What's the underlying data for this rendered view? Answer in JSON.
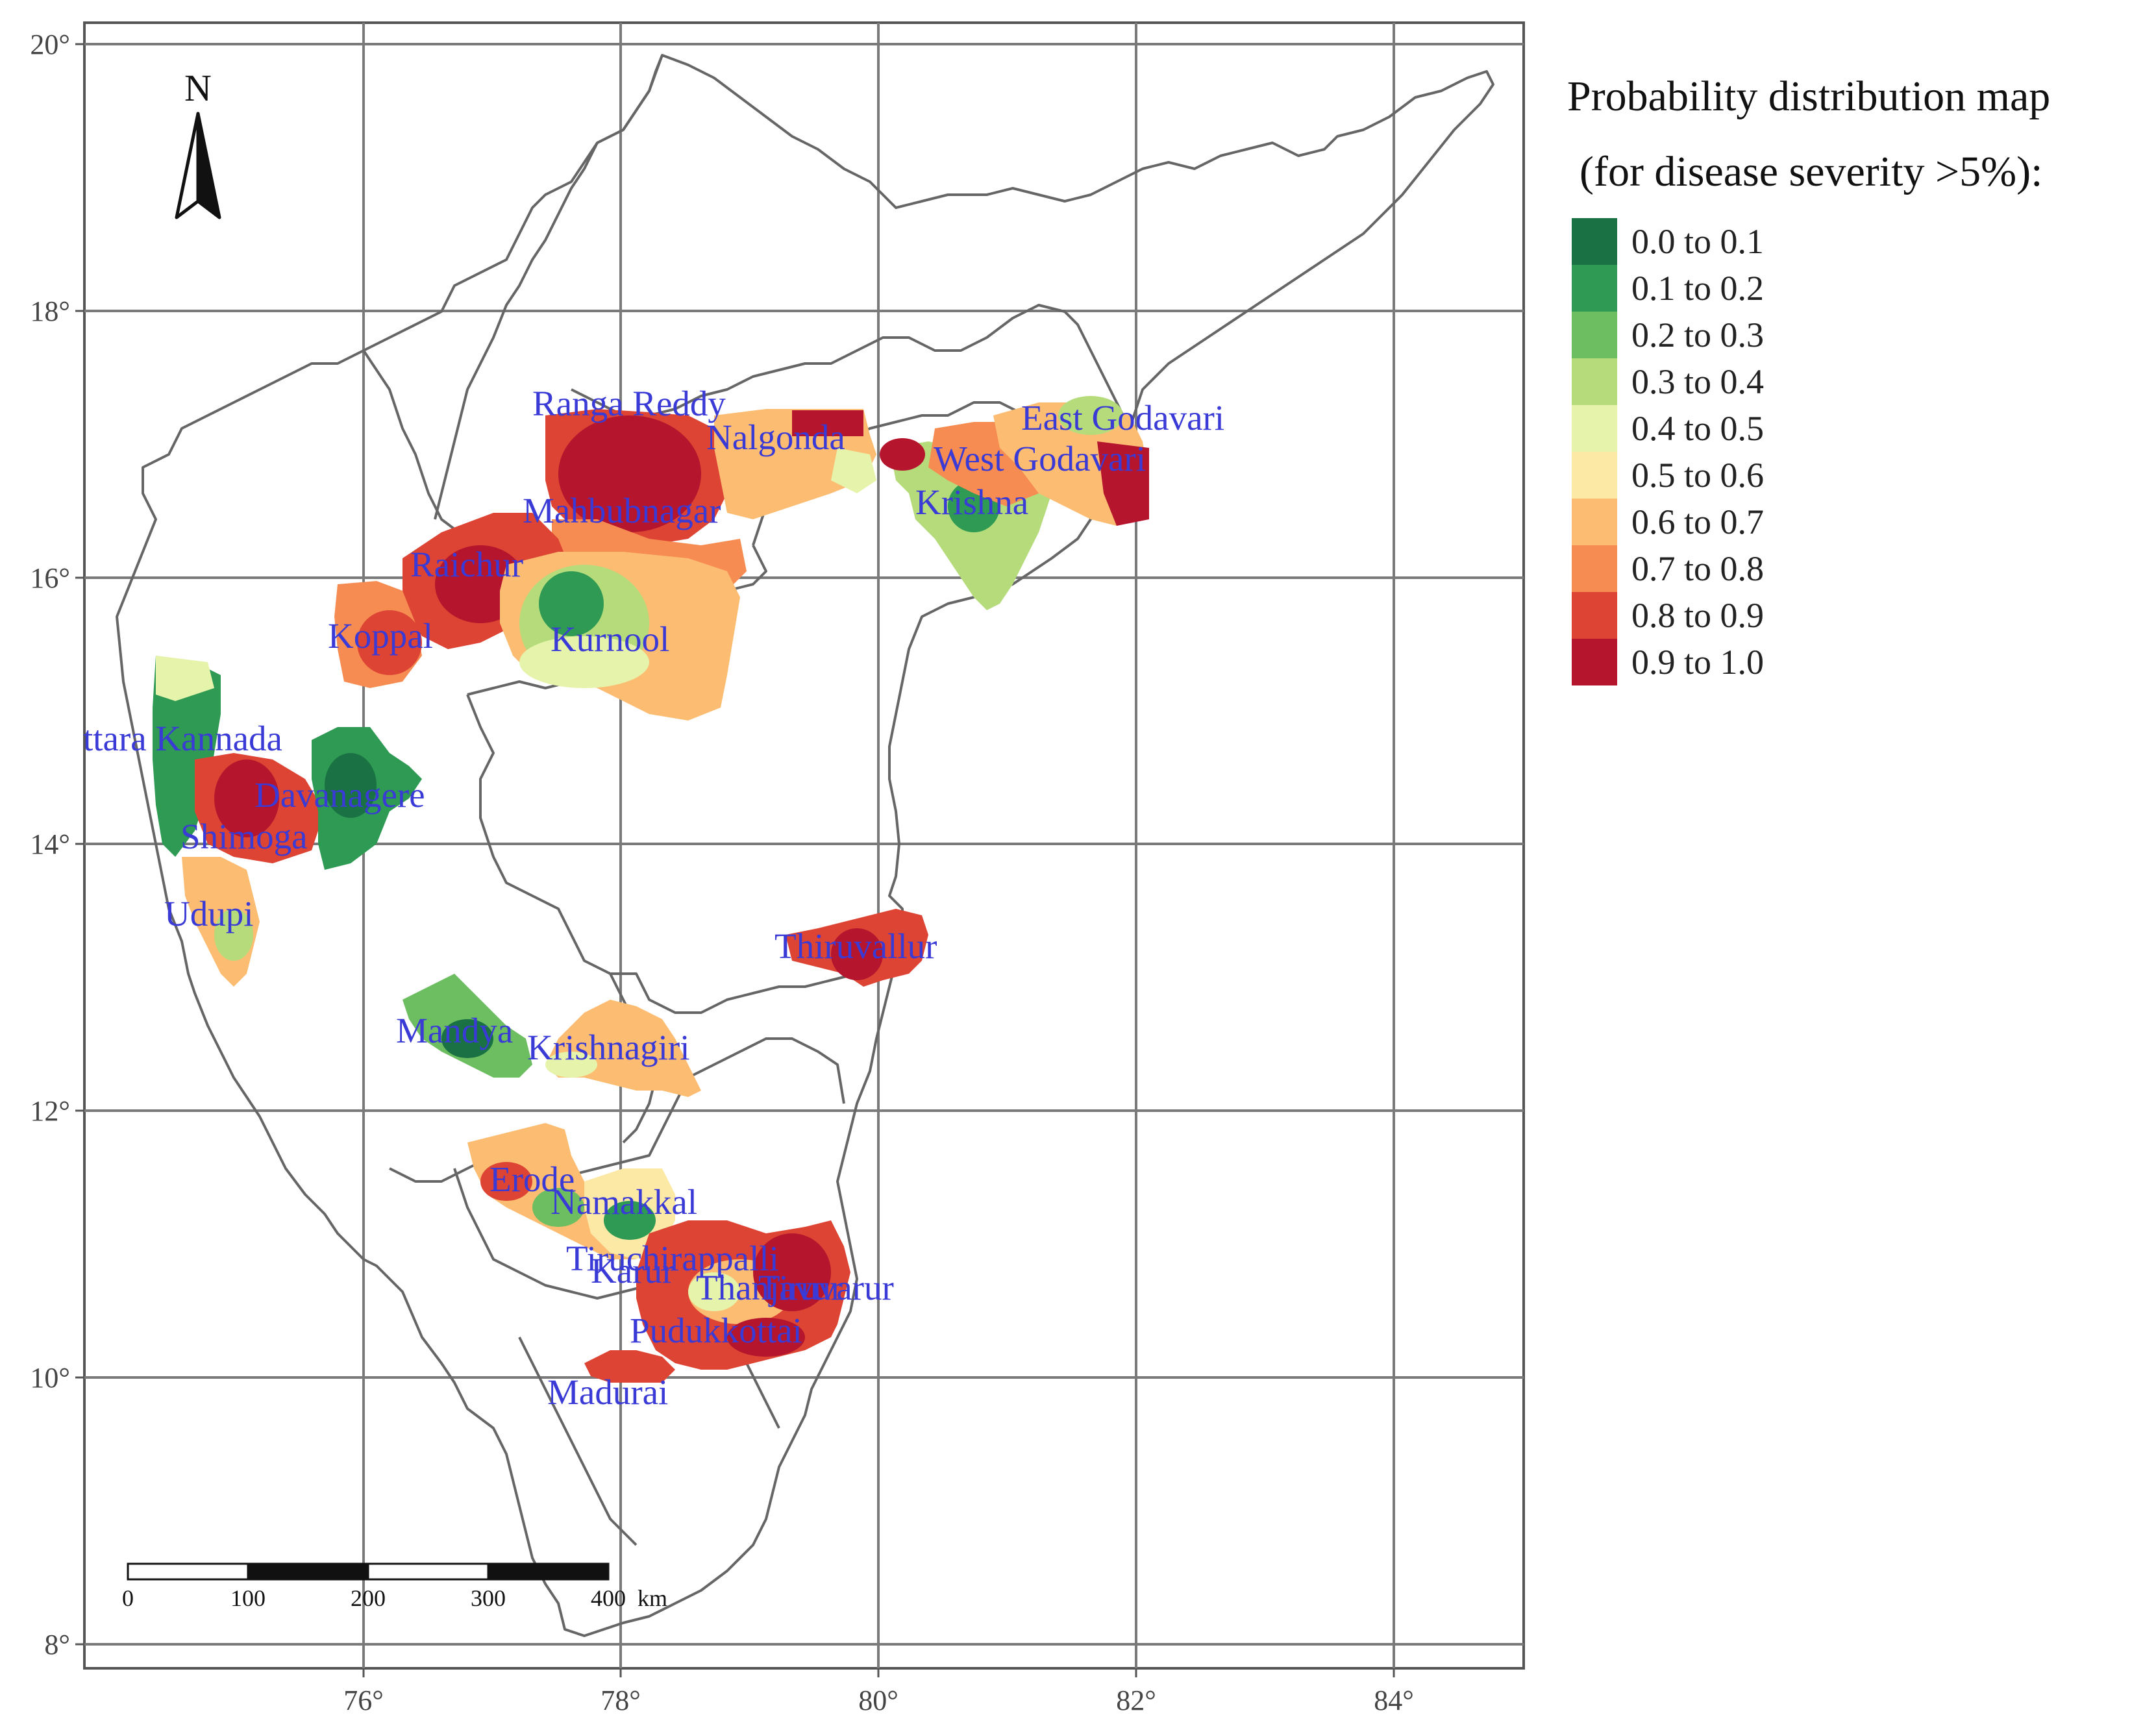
{
  "map": {
    "x_ticks": [
      "76°",
      "78°",
      "80°",
      "82°",
      "84°"
    ],
    "y_ticks": [
      "20°",
      "18°",
      "16°",
      "14°",
      "12°",
      "10°",
      "8°"
    ],
    "north_label": "N",
    "scale_bar": {
      "labels": [
        "0",
        "100",
        "200",
        "300",
        "400"
      ],
      "unit": "km"
    }
  },
  "legend": {
    "title_line1": "Probability distribution map",
    "title_line2": "(for disease severity >5%):",
    "items": [
      {
        "label": "0.0 to 0.1",
        "color": "#1a7244"
      },
      {
        "label": "0.1 to 0.2",
        "color": "#2e9a53"
      },
      {
        "label": "0.2 to 0.3",
        "color": "#6cbe61"
      },
      {
        "label": "0.3 to 0.4",
        "color": "#b5db7b"
      },
      {
        "label": "0.4 to 0.5",
        "color": "#e6f3ab"
      },
      {
        "label": "0.5 to 0.6",
        "color": "#fde9a6"
      },
      {
        "label": "0.6 to 0.7",
        "color": "#fcbd72"
      },
      {
        "label": "0.7 to 0.8",
        "color": "#f68c52"
      },
      {
        "label": "0.8 to 0.9",
        "color": "#de4433"
      },
      {
        "label": "0.9 to 1.0",
        "color": "#b5152d"
      }
    ]
  },
  "districts": [
    {
      "name": "Ranga Reddy"
    },
    {
      "name": "Nalgonda"
    },
    {
      "name": "East Godavari"
    },
    {
      "name": "West Godavari"
    },
    {
      "name": "Krishna"
    },
    {
      "name": "Mahbubnagar"
    },
    {
      "name": "Raichur"
    },
    {
      "name": "Koppal"
    },
    {
      "name": "Kurnool"
    },
    {
      "name": "ttara Kannada"
    },
    {
      "name": "Davanagere"
    },
    {
      "name": "Shimoga"
    },
    {
      "name": "Udupi"
    },
    {
      "name": "Thiruvallur"
    },
    {
      "name": "Mandya"
    },
    {
      "name": "Krishnagiri"
    },
    {
      "name": "Erode"
    },
    {
      "name": "Namakkal"
    },
    {
      "name": "Tiruchirappalli"
    },
    {
      "name": "Karur"
    },
    {
      "name": "Thanjavur"
    },
    {
      "name": "Tiruvarur"
    },
    {
      "name": "Pudukkottai"
    },
    {
      "name": "Madurai"
    }
  ]
}
